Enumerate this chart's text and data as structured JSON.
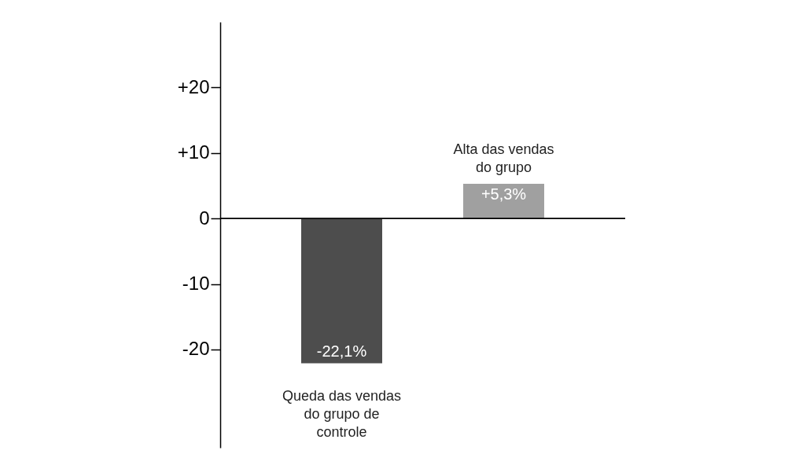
{
  "chart_data": {
    "type": "bar",
    "categories": [
      "Queda das vendas do grupo de controle",
      "Alta das vendas do grupo"
    ],
    "values": [
      -22.1,
      5.3
    ],
    "colors": [
      "#4d4d4d",
      "#a0a0a0"
    ],
    "value_labels": [
      "-22,1%",
      "+5,3%"
    ],
    "ylim": [
      -35,
      30
    ],
    "yticks": [
      {
        "value": 20,
        "label": "+20"
      },
      {
        "value": 10,
        "label": "+10"
      },
      0,
      -10,
      -20
    ]
  }
}
